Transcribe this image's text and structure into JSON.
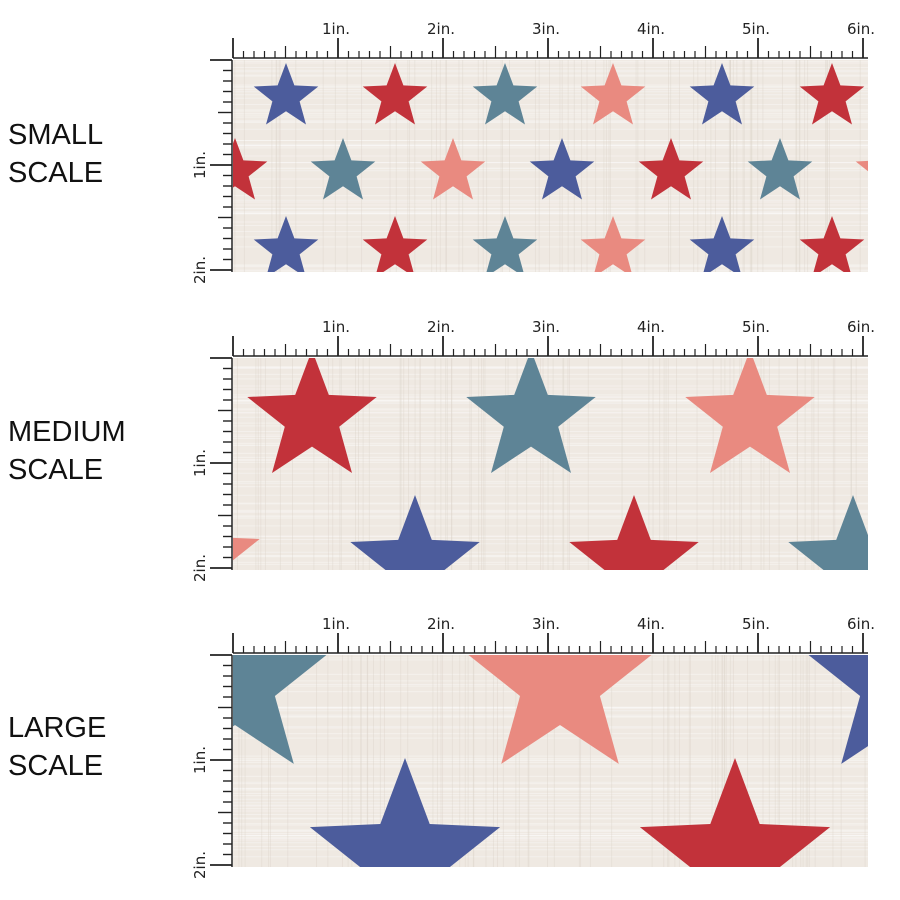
{
  "colors": {
    "navy": "#4c5c9c",
    "red": "#c2323a",
    "teal": "#5e8496",
    "salmon": "#e98a80",
    "fabric": "#efe9e2",
    "ruler": "#222222"
  },
  "panels": [
    {
      "label_line1": "SMALL",
      "label_line2": "SCALE"
    },
    {
      "label_line1": "MEDIUM",
      "label_line2": "SCALE"
    },
    {
      "label_line1": "LARGE",
      "label_line2": "SCALE"
    }
  ],
  "ruler": {
    "top_labels": [
      "1in.",
      "2in.",
      "3in.",
      "4in.",
      "5in.",
      "6in."
    ],
    "side_labels": [
      "1in.",
      "2in."
    ]
  }
}
